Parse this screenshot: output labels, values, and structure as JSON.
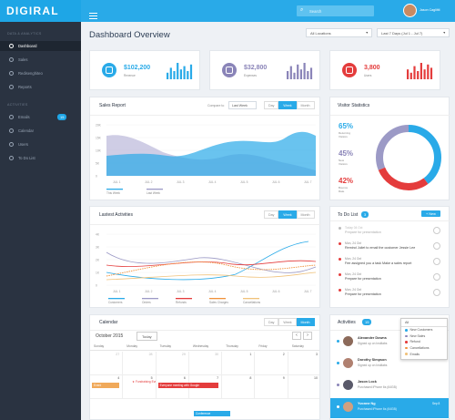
{
  "app": {
    "logo": "DIGIRAL"
  },
  "header": {
    "search_placeholder": "Search",
    "user_name": "Jason Cagliltti"
  },
  "sidebar": {
    "section_main": "DATA & ANALYTICS",
    "items_main": [
      {
        "label": "Dashboard"
      },
      {
        "label": "Sales"
      },
      {
        "label": "Redisenghiteo"
      },
      {
        "label": "Reports"
      }
    ],
    "section_act": "ACTIVITIES",
    "items_act": [
      {
        "label": "Emails",
        "badge": "15"
      },
      {
        "label": "Calendar"
      },
      {
        "label": "Users"
      },
      {
        "label": "To Do List"
      }
    ]
  },
  "page": {
    "title": "Dashboard Overview",
    "filter_location": "All Locations",
    "filter_date": "Last 7 Days (Jul 1 - Jul 7)"
  },
  "kpis": [
    {
      "value": "$102,200",
      "label": "Revenue",
      "color": "#29aae8",
      "bars": [
        0.4,
        0.7,
        0.5,
        1,
        0.6,
        0.8,
        0.5,
        0.9
      ]
    },
    {
      "value": "$32,800",
      "label": "Expenses",
      "color": "#8a84b8",
      "bars": [
        0.5,
        0.8,
        0.4,
        0.9,
        0.6,
        1,
        0.5,
        0.7
      ]
    },
    {
      "value": "3,800",
      "label": "Users",
      "color": "#e43c3c",
      "bars": [
        0.6,
        0.4,
        0.8,
        0.5,
        1,
        0.6,
        0.9,
        0.7
      ]
    }
  ],
  "sales": {
    "title": "Sales Report",
    "compare_label": "Compare to",
    "compare_value": "Last Week",
    "tabs": [
      "Day",
      "Week",
      "Month"
    ],
    "active_tab": "Week",
    "y_ticks": [
      "20K",
      "15K",
      "10K",
      "5K",
      "0"
    ],
    "x_ticks": [
      "JUL 1",
      "JUL 2",
      "JUL 3",
      "JUL 4",
      "JUL 5",
      "JUL 6",
      "JUL 7"
    ],
    "legend": [
      {
        "label": "This Week",
        "color": "#29aae8"
      },
      {
        "label": "Last Week",
        "color": "#9c9ac6"
      }
    ]
  },
  "visitor": {
    "title": "Visitor Statistics",
    "items": [
      {
        "value": "65%",
        "label": "Returning Visitors",
        "color": "#29aae8"
      },
      {
        "value": "45%",
        "label": "New Visitors",
        "color": "#8a84b8"
      },
      {
        "value": "42%",
        "label": "Bounce Rate",
        "color": "#e43c3c"
      }
    ]
  },
  "activities_chart": {
    "title": "Lastest Activities",
    "tabs": [
      "Day",
      "Week",
      "Month"
    ],
    "active_tab": "Week",
    "y_ticks": [
      "4K",
      "3K",
      "2K",
      "1K",
      "0"
    ],
    "x_ticks": [
      "JUL 1",
      "JUL 2",
      "JUL 3",
      "JUL 4",
      "JUL 5",
      "JUL 6",
      "JUL 7"
    ],
    "legend": [
      {
        "label": "Customers",
        "color": "#29aae8"
      },
      {
        "label": "Orders",
        "color": "#9c9ac6"
      },
      {
        "label": "Refunds",
        "color": "#e43c3c"
      },
      {
        "label": "Sales Charges",
        "color": "#f0913a"
      },
      {
        "label": "Cancellations",
        "color": "#f0c27a"
      }
    ]
  },
  "todo": {
    "title": "To Do List",
    "count": "3",
    "new_label": "+ New",
    "items": [
      {
        "date": "Today 04 Oct",
        "text": "Prepare for presentation",
        "color": "#bbb",
        "faded": true
      },
      {
        "date": "Mon, 24 Oct",
        "text": "Remind Juliet to email the customer Jessie Lee",
        "color": "#e43c3c",
        "faded": false
      },
      {
        "date": "Mon, 24 Oct",
        "text": "Fee assigned you a task Make a sales report",
        "color": "#e43c3c",
        "faded": false
      },
      {
        "date": "Mon, 24 Oct",
        "text": "Prepare for presentation",
        "color": "#e43c3c",
        "faded": false
      },
      {
        "date": "Mon, 24 Oct",
        "text": "Prepare for presentation",
        "color": "#e43c3c",
        "faded": false
      }
    ]
  },
  "calendar": {
    "title": "Calendar",
    "tabs": [
      "Day",
      "Week",
      "Month"
    ],
    "active_tab": "Month",
    "month": "October 2015",
    "today_label": "Today",
    "weekdays": [
      "Sunday",
      "Monday",
      "Tuesday",
      "Wednesday",
      "Thursday",
      "Friday",
      "Saturday"
    ],
    "row1": [
      "27",
      "28",
      "29",
      "30",
      "1",
      "2",
      "3"
    ],
    "row2": [
      "4",
      "5",
      "6",
      "7",
      "8",
      "9",
      "10"
    ],
    "events": [
      {
        "text": "Event",
        "color": "#f0a95a"
      },
      {
        "text": "Fundraising Event",
        "color": "#e43c3c"
      },
      {
        "text": "Everyone meeting with Google",
        "color": "#e43c3c"
      },
      {
        "text": "Conference",
        "color": "#29aae8"
      }
    ]
  },
  "activity_feed": {
    "title": "Activities",
    "count": "15",
    "filter_label": "All",
    "filter_options": [
      {
        "label": "New Customers",
        "color": "#29aae8"
      },
      {
        "label": "New Sales",
        "color": "#8a84b8"
      },
      {
        "label": "Refund",
        "color": "#e43c3c"
      },
      {
        "label": "Cancellations",
        "color": "#f0913a"
      },
      {
        "label": "Emails",
        "color": "#f0c27a"
      }
    ],
    "items": [
      {
        "name": "Alexander Downs",
        "text": "Signed up on Instilabs",
        "dot": "#29aae8"
      },
      {
        "name": "Dorothy Simpson",
        "text": "Signed up on Instilabs",
        "dot": "#29aae8"
      },
      {
        "name": "Jason Lock",
        "text": "Purchased iPhone 6s (64GB)",
        "dot": "#8a84b8"
      },
      {
        "name": "Yvonne Ng",
        "text": "Purchased iPhone 6s (64GB)",
        "dot": "#29aae8"
      }
    ],
    "highlight_badge": "Sep 8"
  }
}
